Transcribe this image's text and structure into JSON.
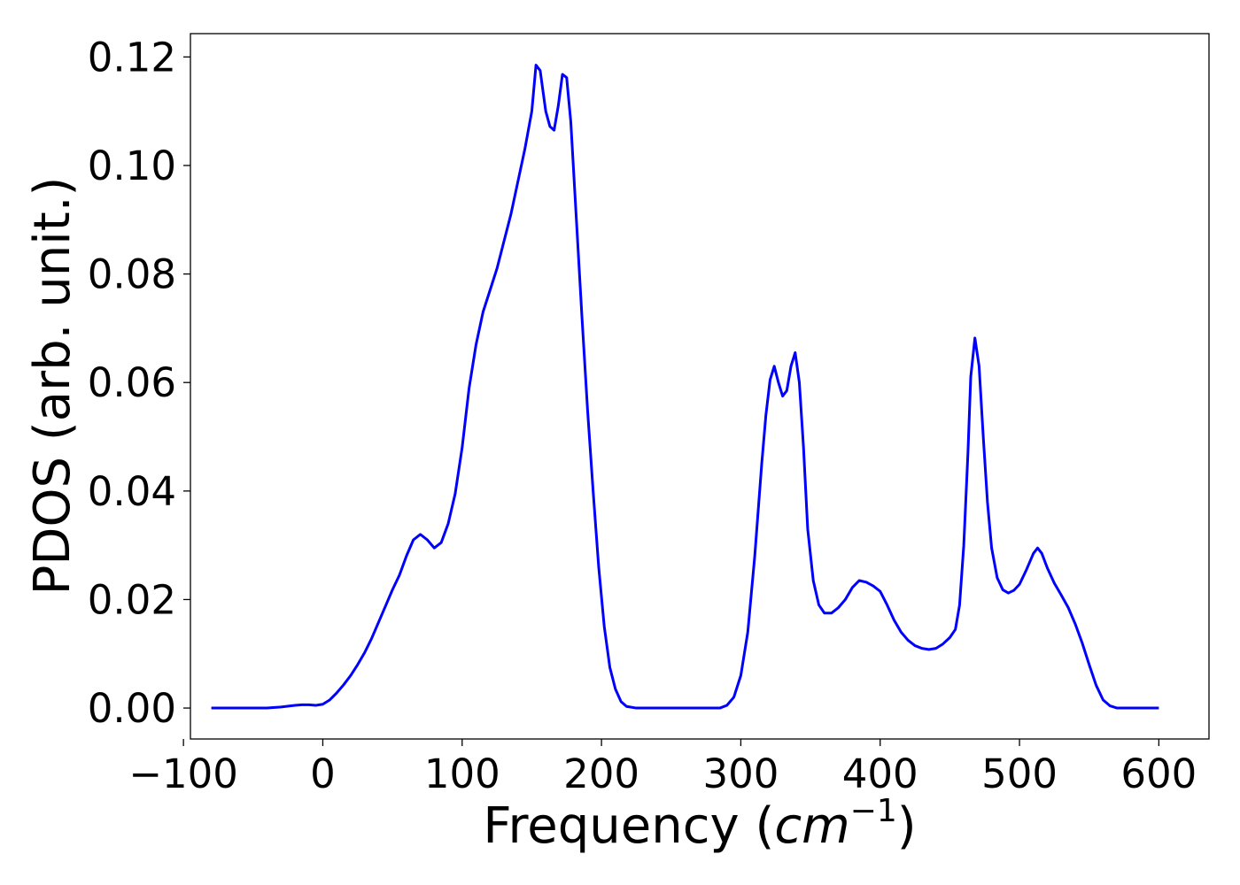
{
  "chart_data": {
    "type": "line",
    "title": "",
    "xlabel": "Frequency (cm⁻¹)",
    "xlabel_main": "Frequency (",
    "xlabel_unit": "cm",
    "xlabel_exp": "−1",
    "xlabel_close": ")",
    "ylabel": "PDOS (arb. unit.)",
    "xlim": [
      -95,
      636
    ],
    "ylim": [
      -0.0057,
      0.1243
    ],
    "xticks": [
      -100,
      0,
      100,
      200,
      300,
      400,
      500,
      600
    ],
    "xtick_labels": [
      "−100",
      "0",
      "100",
      "200",
      "300",
      "400",
      "500",
      "600"
    ],
    "yticks": [
      0.0,
      0.02,
      0.04,
      0.06,
      0.08,
      0.1,
      0.12
    ],
    "ytick_labels": [
      "0.00",
      "0.02",
      "0.04",
      "0.06",
      "0.08",
      "0.10",
      "0.12"
    ],
    "grid": false,
    "legend": "none",
    "series": [
      {
        "color": "#0000ff",
        "points": [
          [
            -80,
            0.0
          ],
          [
            -60,
            0.0
          ],
          [
            -40,
            0.0
          ],
          [
            -30,
            0.0002
          ],
          [
            -20,
            0.0005
          ],
          [
            -15,
            0.0006
          ],
          [
            -10,
            0.0006
          ],
          [
            -5,
            0.0005
          ],
          [
            0,
            0.0007
          ],
          [
            5,
            0.0015
          ],
          [
            10,
            0.0028
          ],
          [
            15,
            0.0043
          ],
          [
            20,
            0.006
          ],
          [
            25,
            0.008
          ],
          [
            30,
            0.0102
          ],
          [
            35,
            0.0128
          ],
          [
            40,
            0.0158
          ],
          [
            45,
            0.0188
          ],
          [
            50,
            0.0218
          ],
          [
            55,
            0.0245
          ],
          [
            60,
            0.028
          ],
          [
            65,
            0.031
          ],
          [
            70,
            0.032
          ],
          [
            75,
            0.031
          ],
          [
            80,
            0.0295
          ],
          [
            85,
            0.0305
          ],
          [
            90,
            0.034
          ],
          [
            95,
            0.0395
          ],
          [
            100,
            0.048
          ],
          [
            105,
            0.059
          ],
          [
            110,
            0.067
          ],
          [
            115,
            0.073
          ],
          [
            120,
            0.077
          ],
          [
            125,
            0.081
          ],
          [
            130,
            0.086
          ],
          [
            135,
            0.091
          ],
          [
            140,
            0.097
          ],
          [
            145,
            0.103
          ],
          [
            150,
            0.11
          ],
          [
            153,
            0.1185
          ],
          [
            156,
            0.1175
          ],
          [
            160,
            0.11
          ],
          [
            163,
            0.1072
          ],
          [
            166,
            0.1065
          ],
          [
            169,
            0.111
          ],
          [
            172,
            0.1168
          ],
          [
            175,
            0.1162
          ],
          [
            178,
            0.108
          ],
          [
            182,
            0.09
          ],
          [
            186,
            0.072
          ],
          [
            190,
            0.055
          ],
          [
            194,
            0.04
          ],
          [
            198,
            0.026
          ],
          [
            202,
            0.015
          ],
          [
            206,
            0.0075
          ],
          [
            210,
            0.0035
          ],
          [
            214,
            0.0012
          ],
          [
            218,
            0.0003
          ],
          [
            225,
            0.0
          ],
          [
            250,
            0.0
          ],
          [
            285,
            0.0
          ],
          [
            290,
            0.0005
          ],
          [
            295,
            0.002
          ],
          [
            300,
            0.006
          ],
          [
            305,
            0.014
          ],
          [
            310,
            0.028
          ],
          [
            315,
            0.045
          ],
          [
            318,
            0.054
          ],
          [
            321,
            0.0605
          ],
          [
            324,
            0.063
          ],
          [
            327,
            0.06
          ],
          [
            330,
            0.0575
          ],
          [
            333,
            0.0585
          ],
          [
            336,
            0.063
          ],
          [
            339,
            0.0655
          ],
          [
            342,
            0.06
          ],
          [
            345,
            0.048
          ],
          [
            348,
            0.033
          ],
          [
            352,
            0.0235
          ],
          [
            356,
            0.019
          ],
          [
            360,
            0.0175
          ],
          [
            365,
            0.0175
          ],
          [
            370,
            0.0185
          ],
          [
            375,
            0.02
          ],
          [
            380,
            0.0222
          ],
          [
            385,
            0.0235
          ],
          [
            390,
            0.0232
          ],
          [
            395,
            0.0225
          ],
          [
            400,
            0.0215
          ],
          [
            405,
            0.019
          ],
          [
            410,
            0.0162
          ],
          [
            415,
            0.014
          ],
          [
            420,
            0.0125
          ],
          [
            425,
            0.0115
          ],
          [
            430,
            0.011
          ],
          [
            435,
            0.0108
          ],
          [
            440,
            0.011
          ],
          [
            445,
            0.0118
          ],
          [
            450,
            0.013
          ],
          [
            454,
            0.0145
          ],
          [
            457,
            0.019
          ],
          [
            460,
            0.03
          ],
          [
            463,
            0.047
          ],
          [
            465,
            0.061
          ],
          [
            468,
            0.0682
          ],
          [
            471,
            0.063
          ],
          [
            474,
            0.05
          ],
          [
            477,
            0.038
          ],
          [
            480,
            0.0295
          ],
          [
            484,
            0.024
          ],
          [
            488,
            0.0218
          ],
          [
            492,
            0.0212
          ],
          [
            496,
            0.0217
          ],
          [
            500,
            0.0228
          ],
          [
            505,
            0.0255
          ],
          [
            510,
            0.0285
          ],
          [
            513,
            0.0295
          ],
          [
            516,
            0.0285
          ],
          [
            520,
            0.0258
          ],
          [
            525,
            0.023
          ],
          [
            530,
            0.0208
          ],
          [
            535,
            0.0185
          ],
          [
            540,
            0.0155
          ],
          [
            545,
            0.012
          ],
          [
            550,
            0.008
          ],
          [
            555,
            0.0042
          ],
          [
            560,
            0.0015
          ],
          [
            565,
            0.0004
          ],
          [
            570,
            0.0
          ],
          [
            600,
            0.0
          ]
        ]
      }
    ]
  }
}
